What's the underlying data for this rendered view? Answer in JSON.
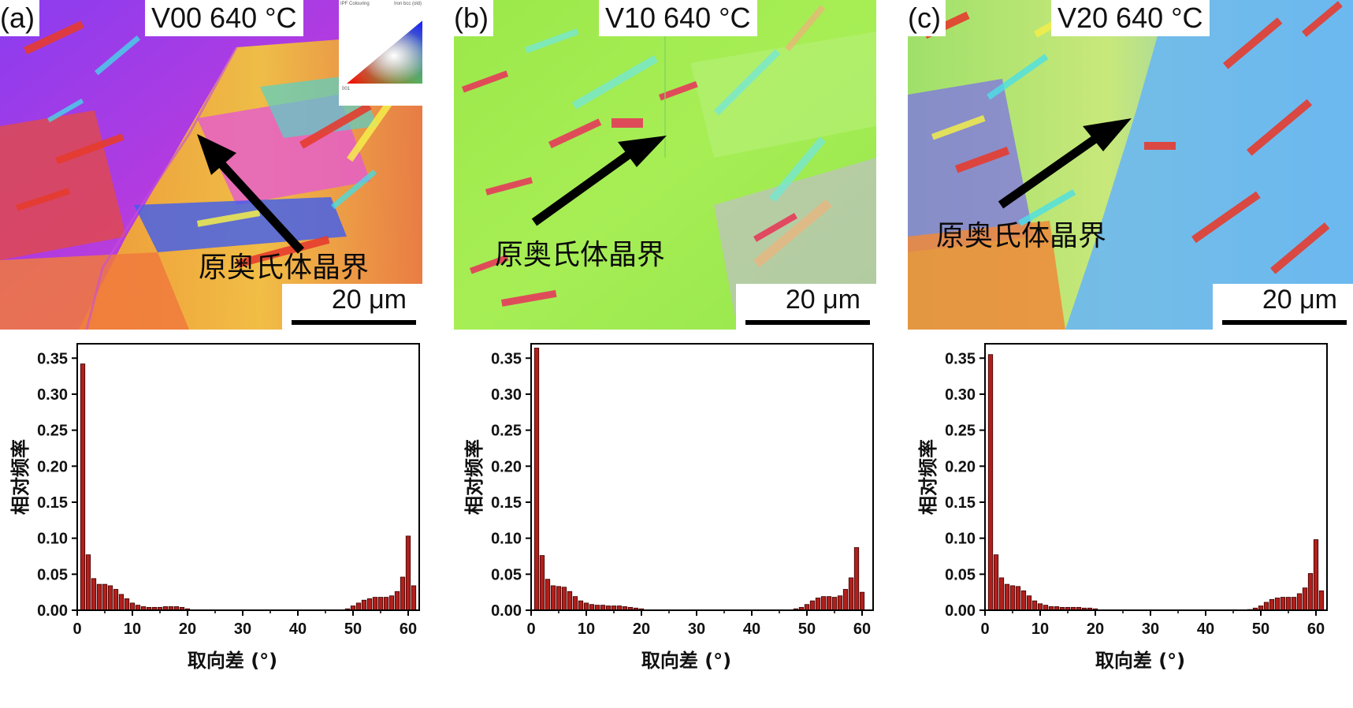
{
  "colors": {
    "bar_fill": "#b1201c",
    "bar_stroke": "#3a0000",
    "arrow": "#000000"
  },
  "ipf_key": {
    "corner_top": "111",
    "corner_left": "001",
    "corner_right": "101",
    "header_left": "IPF Colouring",
    "header_right": "Iron bcc (old)"
  },
  "panels": [
    {
      "label": "(a)",
      "title": "V00 640 °C",
      "gb_label": "原奥氏体晶界",
      "scale": "20 μm"
    },
    {
      "label": "(b)",
      "title": "V10 640 °C",
      "gb_label": "原奥氏体晶界",
      "scale": "20 μm"
    },
    {
      "label": "(c)",
      "title": "V20 640 °C",
      "gb_label": "原奥氏体晶界",
      "scale": "20 μm"
    }
  ],
  "chart_data": [
    {
      "type": "bar",
      "xlabel": "取向差 (°)",
      "ylabel": "相对频率",
      "xlim": [
        0,
        62
      ],
      "ylim": [
        0,
        0.37
      ],
      "xticks": [
        0,
        10,
        20,
        30,
        40,
        50,
        60
      ],
      "yticks": [
        "0.00",
        "0.05",
        "0.10",
        "0.15",
        "0.20",
        "0.25",
        "0.30",
        "0.35"
      ],
      "x": [
        1,
        2,
        3,
        4,
        5,
        6,
        7,
        8,
        9,
        10,
        11,
        12,
        13,
        14,
        15,
        16,
        17,
        18,
        19,
        20,
        49,
        50,
        51,
        52,
        53,
        54,
        55,
        56,
        57,
        58,
        59,
        60,
        61
      ],
      "values": [
        0.342,
        0.077,
        0.044,
        0.036,
        0.036,
        0.034,
        0.029,
        0.022,
        0.016,
        0.01,
        0.007,
        0.005,
        0.004,
        0.004,
        0.004,
        0.005,
        0.005,
        0.005,
        0.004,
        0.002,
        0.002,
        0.006,
        0.01,
        0.014,
        0.016,
        0.018,
        0.018,
        0.018,
        0.02,
        0.026,
        0.046,
        0.103,
        0.034
      ]
    },
    {
      "type": "bar",
      "xlabel": "取向差 (°)",
      "ylabel": "相对频率",
      "xlim": [
        0,
        62
      ],
      "ylim": [
        0,
        0.37
      ],
      "xticks": [
        0,
        10,
        20,
        30,
        40,
        50,
        60
      ],
      "yticks": [
        "0.00",
        "0.05",
        "0.10",
        "0.15",
        "0.20",
        "0.25",
        "0.30",
        "0.35"
      ],
      "x": [
        1,
        2,
        3,
        4,
        5,
        6,
        7,
        8,
        9,
        10,
        11,
        12,
        13,
        14,
        15,
        16,
        17,
        18,
        19,
        20,
        48,
        49,
        50,
        51,
        52,
        53,
        54,
        55,
        56,
        57,
        58,
        59,
        60,
        61
      ],
      "values": [
        0.364,
        0.076,
        0.043,
        0.034,
        0.033,
        0.032,
        0.026,
        0.019,
        0.013,
        0.01,
        0.008,
        0.007,
        0.007,
        0.006,
        0.006,
        0.006,
        0.005,
        0.004,
        0.003,
        0.002,
        0.002,
        0.004,
        0.008,
        0.013,
        0.017,
        0.019,
        0.019,
        0.018,
        0.02,
        0.029,
        0.045,
        0.087,
        0.025,
        0.0
      ]
    },
    {
      "type": "bar",
      "xlabel": "取向差 (°)",
      "ylabel": "相对频率",
      "xlim": [
        0,
        62
      ],
      "ylim": [
        0,
        0.37
      ],
      "xticks": [
        0,
        10,
        20,
        30,
        40,
        50,
        60
      ],
      "yticks": [
        "0.00",
        "0.05",
        "0.10",
        "0.15",
        "0.20",
        "0.25",
        "0.30",
        "0.35"
      ],
      "x": [
        1,
        2,
        3,
        4,
        5,
        6,
        7,
        8,
        9,
        10,
        11,
        12,
        13,
        14,
        15,
        16,
        17,
        18,
        19,
        20,
        48,
        49,
        50,
        51,
        52,
        53,
        54,
        55,
        56,
        57,
        58,
        59,
        60,
        61
      ],
      "values": [
        0.355,
        0.077,
        0.045,
        0.036,
        0.034,
        0.033,
        0.027,
        0.02,
        0.013,
        0.009,
        0.007,
        0.005,
        0.005,
        0.004,
        0.004,
        0.004,
        0.004,
        0.003,
        0.003,
        0.002,
        0.001,
        0.003,
        0.006,
        0.011,
        0.015,
        0.017,
        0.018,
        0.018,
        0.018,
        0.023,
        0.031,
        0.051,
        0.098,
        0.027
      ]
    }
  ]
}
